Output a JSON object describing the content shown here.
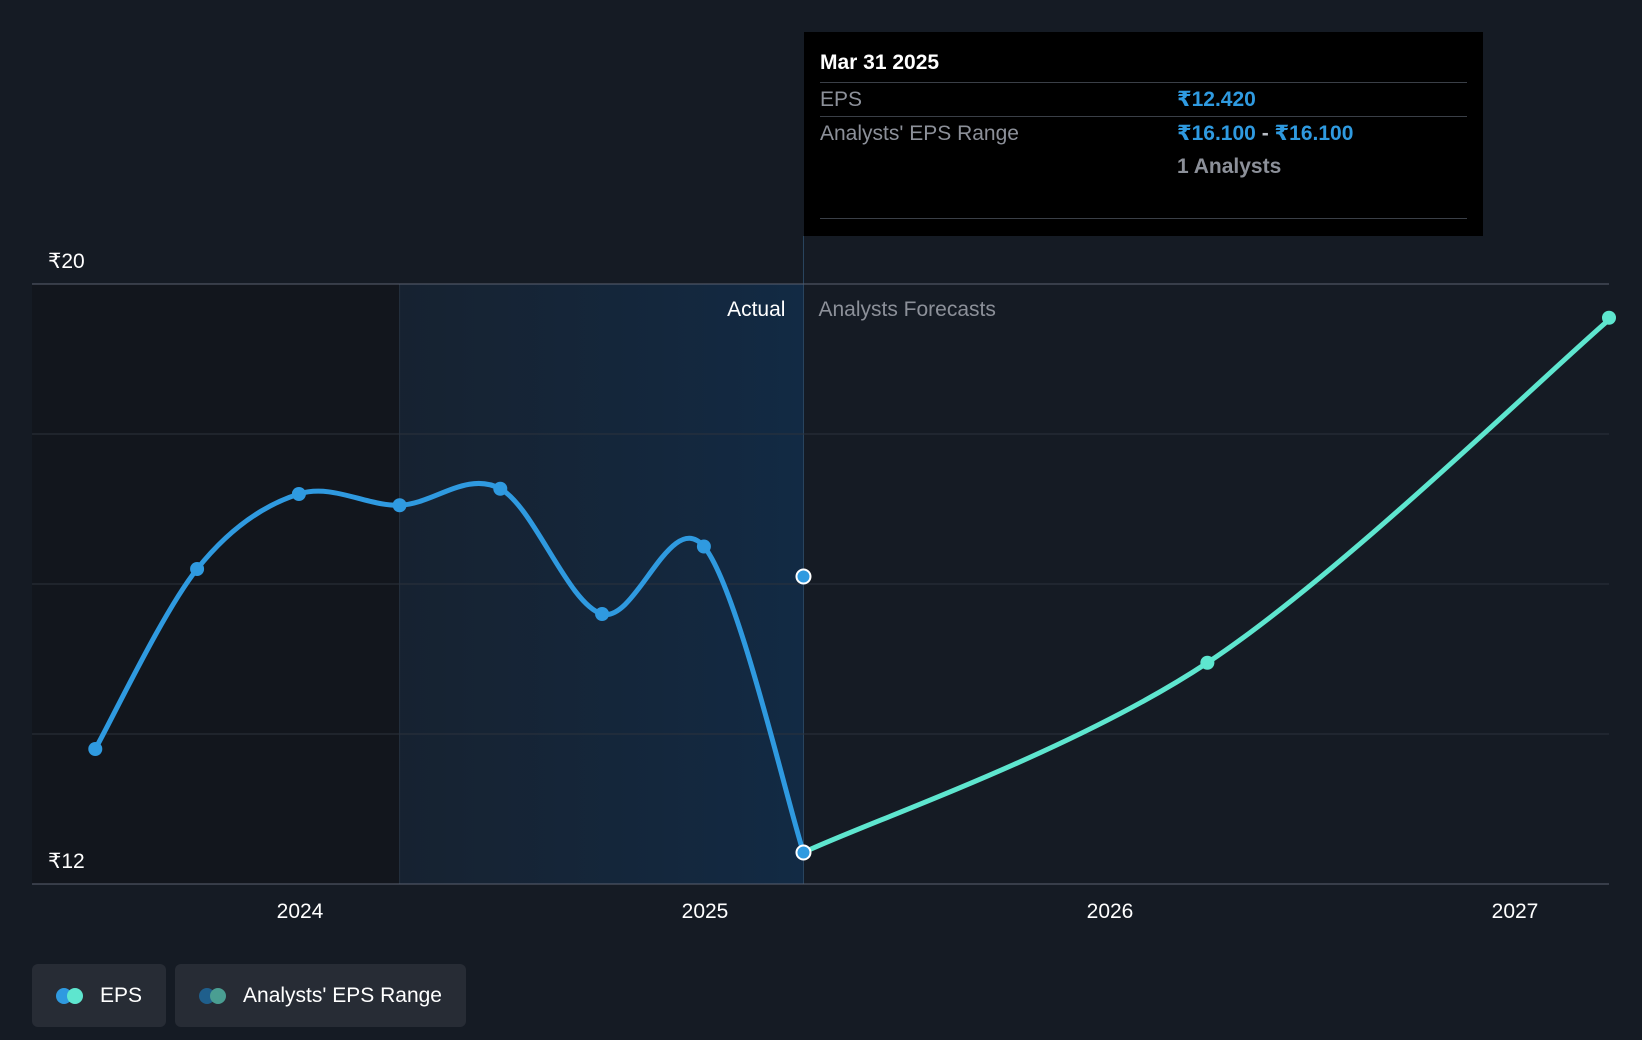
{
  "chart_data": {
    "type": "line",
    "y_axis": {
      "unit_prefix": "₹",
      "min": 12,
      "max": 20,
      "tick_labels": [
        "₹20",
        "₹12"
      ]
    },
    "x_axis": {
      "tick_labels": [
        "2024",
        "2025",
        "2026",
        "2027"
      ]
    },
    "region_labels": {
      "actual": "Actual",
      "forecast": "Analysts Forecasts"
    },
    "series": [
      {
        "name": "EPS",
        "color": "#2f9ae0",
        "points": [
          {
            "date": "2023-06-30",
            "value": 13.8
          },
          {
            "date": "2023-09-30",
            "value": 16.2
          },
          {
            "date": "2023-12-31",
            "value": 17.2
          },
          {
            "date": "2024-03-31",
            "value": 17.05
          },
          {
            "date": "2024-06-30",
            "value": 17.27
          },
          {
            "date": "2024-09-30",
            "value": 15.6
          },
          {
            "date": "2024-12-31",
            "value": 16.5
          },
          {
            "date": "2025-03-31",
            "value": 12.42
          }
        ]
      },
      {
        "name": "EPS Forecast",
        "color": "#5ee6cf",
        "points": [
          {
            "date": "2025-03-31",
            "value": 12.42
          },
          {
            "date": "2026-03-31",
            "value": 14.95
          },
          {
            "date": "2027-03-31",
            "value": 19.55
          }
        ]
      }
    ],
    "range_marker": {
      "date": "2025-03-31",
      "value": 16.1
    },
    "grid": true,
    "legend_position": "bottom-left"
  },
  "tooltip": {
    "date": "Mar 31 2025",
    "eps_label": "EPS",
    "eps_value": "₹12.420",
    "range_label": "Analysts' EPS Range",
    "range_low": "₹16.100",
    "range_sep": "-",
    "range_high": "₹16.100",
    "analysts": "1 Analysts"
  },
  "legend": {
    "items": [
      {
        "label": "EPS",
        "color_a": "#2f9ae0",
        "color_b": "#5ee6cf"
      },
      {
        "label": "Analysts' EPS Range",
        "color_a": "#1f5f8c",
        "color_b": "#4a9e92"
      }
    ]
  }
}
